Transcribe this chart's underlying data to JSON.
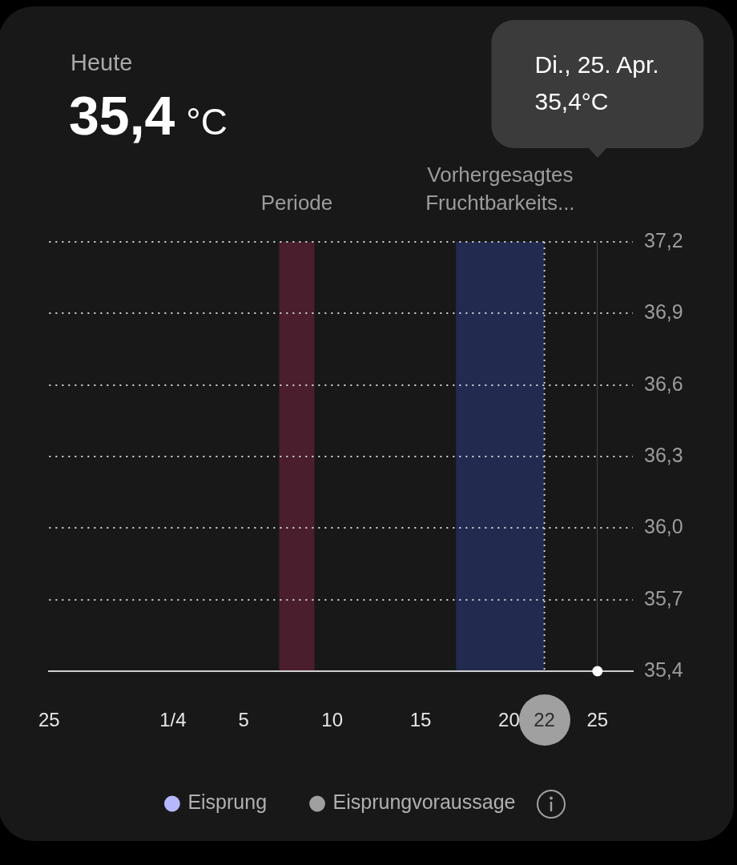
{
  "chart_data": {
    "type": "line",
    "title": "Heute",
    "subtitle": "35,4 °C",
    "x": [
      "--04-25"
    ],
    "series": [
      {
        "color": "#ffffff",
        "values": [
          35.4
        ]
      },
      {
        "name": "Eisprung",
        "type": "scatter",
        "color": "#b5b8fc",
        "values": [
          null
        ]
      },
      {
        "name": "Eisprungvoraussage",
        "type": "scatter",
        "color": "#a0a0a0",
        "values": [
          null
        ]
      }
    ],
    "xlim": [
      "--03-25",
      "--04-27"
    ],
    "xticks": [
      {
        "value": "--03-25",
        "label": "25"
      },
      {
        "value": "--04-01",
        "label": "1/4"
      },
      {
        "value": "--04-05",
        "label": "5"
      },
      {
        "value": "--04-10",
        "label": "10"
      },
      {
        "value": "--04-15",
        "label": "15"
      },
      {
        "value": "--04-20",
        "label": "20"
      },
      {
        "value": "--04-22",
        "label": "22"
      },
      {
        "value": "--04-25",
        "label": "25"
      }
    ],
    "ylim": [
      35.4,
      37.2
    ],
    "yticks": [
      {
        "value": 35.4,
        "label": "35,4"
      },
      {
        "value": 35.7,
        "label": "35,7"
      },
      {
        "value": 36.0,
        "label": "36,0"
      },
      {
        "value": 36.3,
        "label": "36,3"
      },
      {
        "value": 36.6,
        "label": "36,6"
      },
      {
        "value": 36.9,
        "label": "36,9"
      },
      {
        "value": 37.2,
        "label": "37,2"
      }
    ],
    "bands": [
      {
        "axis": "x",
        "from": "--04-07",
        "to": "--04-09",
        "label": "Periode",
        "color": "#4a1e2c"
      },
      {
        "axis": "x",
        "from": "--04-17",
        "to": "--04-22",
        "label": "Vorhergesagtes Fruchtbarkeits...",
        "color": "#222a50"
      }
    ],
    "ref_lines": [
      {
        "axis": "x",
        "value": "--04-22",
        "color": "#d0d0d0",
        "line_style": "dotted"
      }
    ],
    "annotations": [
      "Di., 25. Apr.\n35,4°C"
    ],
    "grid": "y",
    "legend": "bottom",
    "marker": "circle"
  }
}
